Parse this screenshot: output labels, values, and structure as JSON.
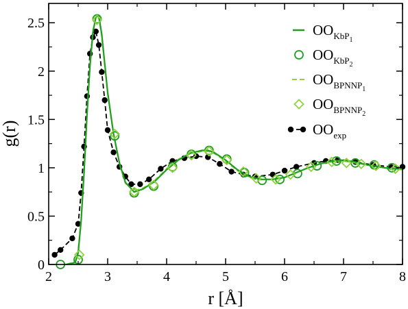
{
  "chart_data": {
    "type": "line",
    "xlabel": "r [Å]",
    "ylabel": "g(r)",
    "xlim": [
      2,
      8
    ],
    "ylim": [
      0,
      2.7
    ],
    "xticks": [
      2,
      3,
      4,
      5,
      6,
      7,
      8
    ],
    "yticks": [
      0,
      0.5,
      1,
      1.5,
      2,
      2.5
    ],
    "xtick_labels": [
      "2",
      "3",
      "4",
      "5",
      "6",
      "7",
      "8"
    ],
    "ytick_labels": [
      "0",
      "0.5",
      "1",
      "1.5",
      "2",
      "2.5"
    ],
    "grid": false,
    "legend_position": "top-right",
    "series": [
      {
        "name": "OO",
        "sub": "KbP",
        "subsub": "1",
        "style": "solid-line",
        "color": "#1e9e1e",
        "x": [
          2.3,
          2.45,
          2.5,
          2.55,
          2.6,
          2.65,
          2.7,
          2.75,
          2.8,
          2.85,
          2.9,
          2.95,
          3.0,
          3.1,
          3.2,
          3.3,
          3.45,
          3.6,
          3.8,
          4.0,
          4.2,
          4.4,
          4.6,
          4.7,
          4.8,
          5.0,
          5.2,
          5.4,
          5.6,
          5.8,
          6.0,
          6.2,
          6.4,
          6.6,
          6.8,
          7.0,
          7.2,
          7.4,
          7.6,
          7.8,
          8.0
        ],
        "y": [
          0.0,
          0.02,
          0.12,
          0.45,
          0.95,
          1.55,
          2.05,
          2.4,
          2.56,
          2.57,
          2.38,
          2.08,
          1.78,
          1.35,
          1.05,
          0.85,
          0.75,
          0.78,
          0.86,
          0.98,
          1.08,
          1.15,
          1.18,
          1.18,
          1.16,
          1.08,
          0.98,
          0.91,
          0.88,
          0.88,
          0.9,
          0.95,
          1.0,
          1.04,
          1.07,
          1.08,
          1.06,
          1.03,
          1.01,
          0.99,
          0.99
        ]
      },
      {
        "name": "OO",
        "sub": "KbP",
        "subsub": "2",
        "style": "open-circle",
        "color": "#1e9e1e",
        "x": [
          2.2,
          2.5,
          2.82,
          3.12,
          3.45,
          3.78,
          4.1,
          4.42,
          4.72,
          5.02,
          5.32,
          5.62,
          5.92,
          6.22,
          6.55,
          6.88,
          7.2,
          7.52,
          7.82
        ],
        "y": [
          0.0,
          0.05,
          2.54,
          1.33,
          0.74,
          0.81,
          1.01,
          1.14,
          1.18,
          1.09,
          0.95,
          0.87,
          0.88,
          0.94,
          1.02,
          1.07,
          1.05,
          1.03,
          1.0
        ]
      },
      {
        "name": "OO",
        "sub": "BPNNP",
        "subsub": "1",
        "style": "dashed-line",
        "color": "#8fd13f",
        "x": [
          2.3,
          2.45,
          2.5,
          2.55,
          2.6,
          2.65,
          2.7,
          2.75,
          2.8,
          2.85,
          2.9,
          2.95,
          3.0,
          3.1,
          3.2,
          3.3,
          3.45,
          3.6,
          3.8,
          4.0,
          4.2,
          4.4,
          4.6,
          4.7,
          4.8,
          5.0,
          5.2,
          5.4,
          5.6,
          5.8,
          6.0,
          6.2,
          6.4,
          6.6,
          6.8,
          7.0,
          7.2,
          7.4,
          7.6,
          7.8,
          8.0
        ],
        "y": [
          0.0,
          0.03,
          0.14,
          0.48,
          0.98,
          1.58,
          2.08,
          2.42,
          2.55,
          2.55,
          2.36,
          2.06,
          1.77,
          1.34,
          1.04,
          0.84,
          0.76,
          0.79,
          0.87,
          0.99,
          1.09,
          1.15,
          1.17,
          1.17,
          1.15,
          1.07,
          0.97,
          0.9,
          0.88,
          0.88,
          0.9,
          0.95,
          1.0,
          1.04,
          1.06,
          1.07,
          1.05,
          1.03,
          1.01,
          0.99,
          0.98
        ]
      },
      {
        "name": "OO",
        "sub": "BPNNP",
        "subsub": "2",
        "style": "open-diamond",
        "color": "#8fd13f",
        "x": [
          2.52,
          2.82,
          3.12,
          3.45,
          3.78,
          4.1,
          4.42,
          4.72,
          5.02,
          5.3,
          5.52,
          5.85,
          6.1,
          6.45,
          6.8,
          7.05,
          7.3,
          7.55,
          7.88
        ],
        "y": [
          0.1,
          2.53,
          1.35,
          0.75,
          0.82,
          1.0,
          1.13,
          1.17,
          1.08,
          0.96,
          0.89,
          0.88,
          0.93,
          1.01,
          1.06,
          1.05,
          1.04,
          1.02,
          0.99
        ]
      },
      {
        "name": "OO",
        "sub": "exp",
        "subsub": "",
        "style": "dashed-filled-circle",
        "color": "#000000",
        "x": [
          2.1,
          2.2,
          2.4,
          2.5,
          2.55,
          2.6,
          2.65,
          2.7,
          2.75,
          2.8,
          2.85,
          2.9,
          2.95,
          3.0,
          3.1,
          3.2,
          3.3,
          3.4,
          3.55,
          3.7,
          3.9,
          4.1,
          4.3,
          4.5,
          4.7,
          4.9,
          5.1,
          5.3,
          5.5,
          5.8,
          6.0,
          6.2,
          6.5,
          6.7,
          6.9,
          7.2,
          7.5,
          7.8,
          8.0
        ],
        "y": [
          0.1,
          0.15,
          0.27,
          0.42,
          0.74,
          1.22,
          1.74,
          2.18,
          2.35,
          2.41,
          2.27,
          1.99,
          1.7,
          1.39,
          1.16,
          1.01,
          0.91,
          0.83,
          0.83,
          0.88,
          0.99,
          1.07,
          1.1,
          1.12,
          1.11,
          1.04,
          0.96,
          0.93,
          0.91,
          0.93,
          0.97,
          1.01,
          1.05,
          1.07,
          1.08,
          1.06,
          1.03,
          1.01,
          1.01
        ]
      }
    ]
  }
}
